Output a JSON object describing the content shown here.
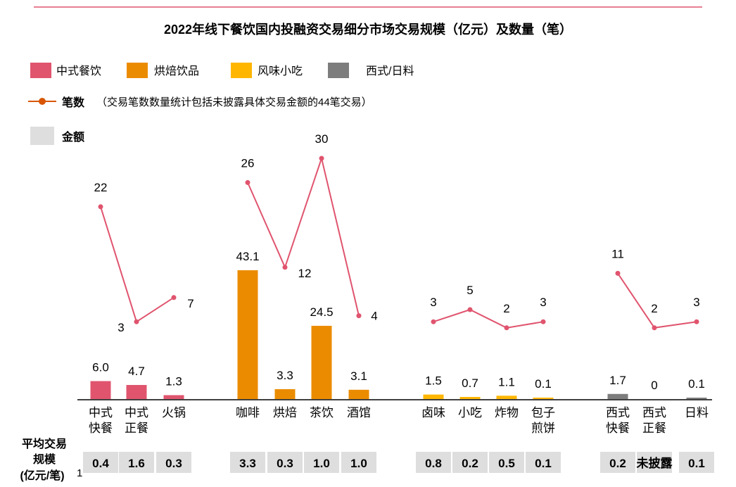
{
  "chart_data": {
    "type": "bar",
    "title": "2022年线下餐饮国内投融资交易细分市场交易规模（亿元）及数量（笔）",
    "legend": {
      "categories": [
        {
          "label": "中式餐饮",
          "color": "#e0546e"
        },
        {
          "label": "烘焙饮品",
          "color": "#eb8c00"
        },
        {
          "label": "风味小吃",
          "color": "#ffb600"
        },
        {
          "label": "西式/日料",
          "color": "#7d7d7d"
        }
      ],
      "line_label": "笔数",
      "line_note": "（交易笔数数量统计包括未披露具体交易金额的44笔交易）",
      "amount_label": "金额"
    },
    "colors": {
      "line": "#e0546e",
      "legend_line": "#d85604",
      "avg_box": "#dedede",
      "axis": "#000000",
      "top_rule": "#e0546e"
    },
    "groups": [
      {
        "name": "中式餐饮",
        "color": "#e0546e",
        "items": [
          {
            "label": [
              "中式",
              "快餐"
            ],
            "amount": 6.0,
            "amount_label": "6.0",
            "count": 22,
            "avg": "0.4"
          },
          {
            "label": [
              "中式",
              "正餐"
            ],
            "amount": 4.7,
            "amount_label": "4.7",
            "count": 3,
            "avg": "1.6"
          },
          {
            "label": [
              "火锅"
            ],
            "amount": 1.3,
            "amount_label": "1.3",
            "count": 7,
            "avg": "0.3"
          }
        ]
      },
      {
        "name": "烘焙饮品",
        "color": "#eb8c00",
        "items": [
          {
            "label": [
              "咖啡"
            ],
            "amount": 43.1,
            "amount_label": "43.1",
            "count": 26,
            "avg": "3.3"
          },
          {
            "label": [
              "烘焙"
            ],
            "amount": 3.3,
            "amount_label": "3.3",
            "count": 12,
            "avg": "0.3"
          },
          {
            "label": [
              "茶饮"
            ],
            "amount": 24.5,
            "amount_label": "24.5",
            "count": 30,
            "avg": "1.0"
          },
          {
            "label": [
              "酒馆"
            ],
            "amount": 3.1,
            "amount_label": "3.1",
            "count": 4,
            "avg": "1.0"
          }
        ]
      },
      {
        "name": "风味小吃",
        "color": "#ffb600",
        "items": [
          {
            "label": [
              "卤味"
            ],
            "amount": 1.5,
            "amount_label": "1.5",
            "count": 3,
            "avg": "0.8"
          },
          {
            "label": [
              "小吃"
            ],
            "amount": 0.7,
            "amount_label": "0.7",
            "count": 5,
            "avg": "0.2"
          },
          {
            "label": [
              "炸物"
            ],
            "amount": 1.1,
            "amount_label": "1.1",
            "count": 2,
            "avg": "0.5"
          },
          {
            "label": [
              "包子",
              "煎饼"
            ],
            "amount": 0.1,
            "amount_label": "0.1",
            "count": 3,
            "avg": "0.1"
          }
        ]
      },
      {
        "name": "西式/日料",
        "color": "#7d7d7d",
        "items": [
          {
            "label": [
              "西式",
              "快餐"
            ],
            "amount": 1.7,
            "amount_label": "1.7",
            "count": 11,
            "avg": "0.2"
          },
          {
            "label": [
              "西式",
              "正餐"
            ],
            "amount": 0,
            "amount_label": "0",
            "count": 2,
            "avg": "未披露"
          },
          {
            "label": [
              "日料"
            ],
            "amount": 0.1,
            "amount_label": "0.1",
            "count": 3,
            "avg": "0.1"
          }
        ]
      }
    ],
    "avg_row_label": [
      "平均交易",
      "规模",
      "(亿元/笔)"
    ],
    "avg_row_footnote": "1"
  }
}
